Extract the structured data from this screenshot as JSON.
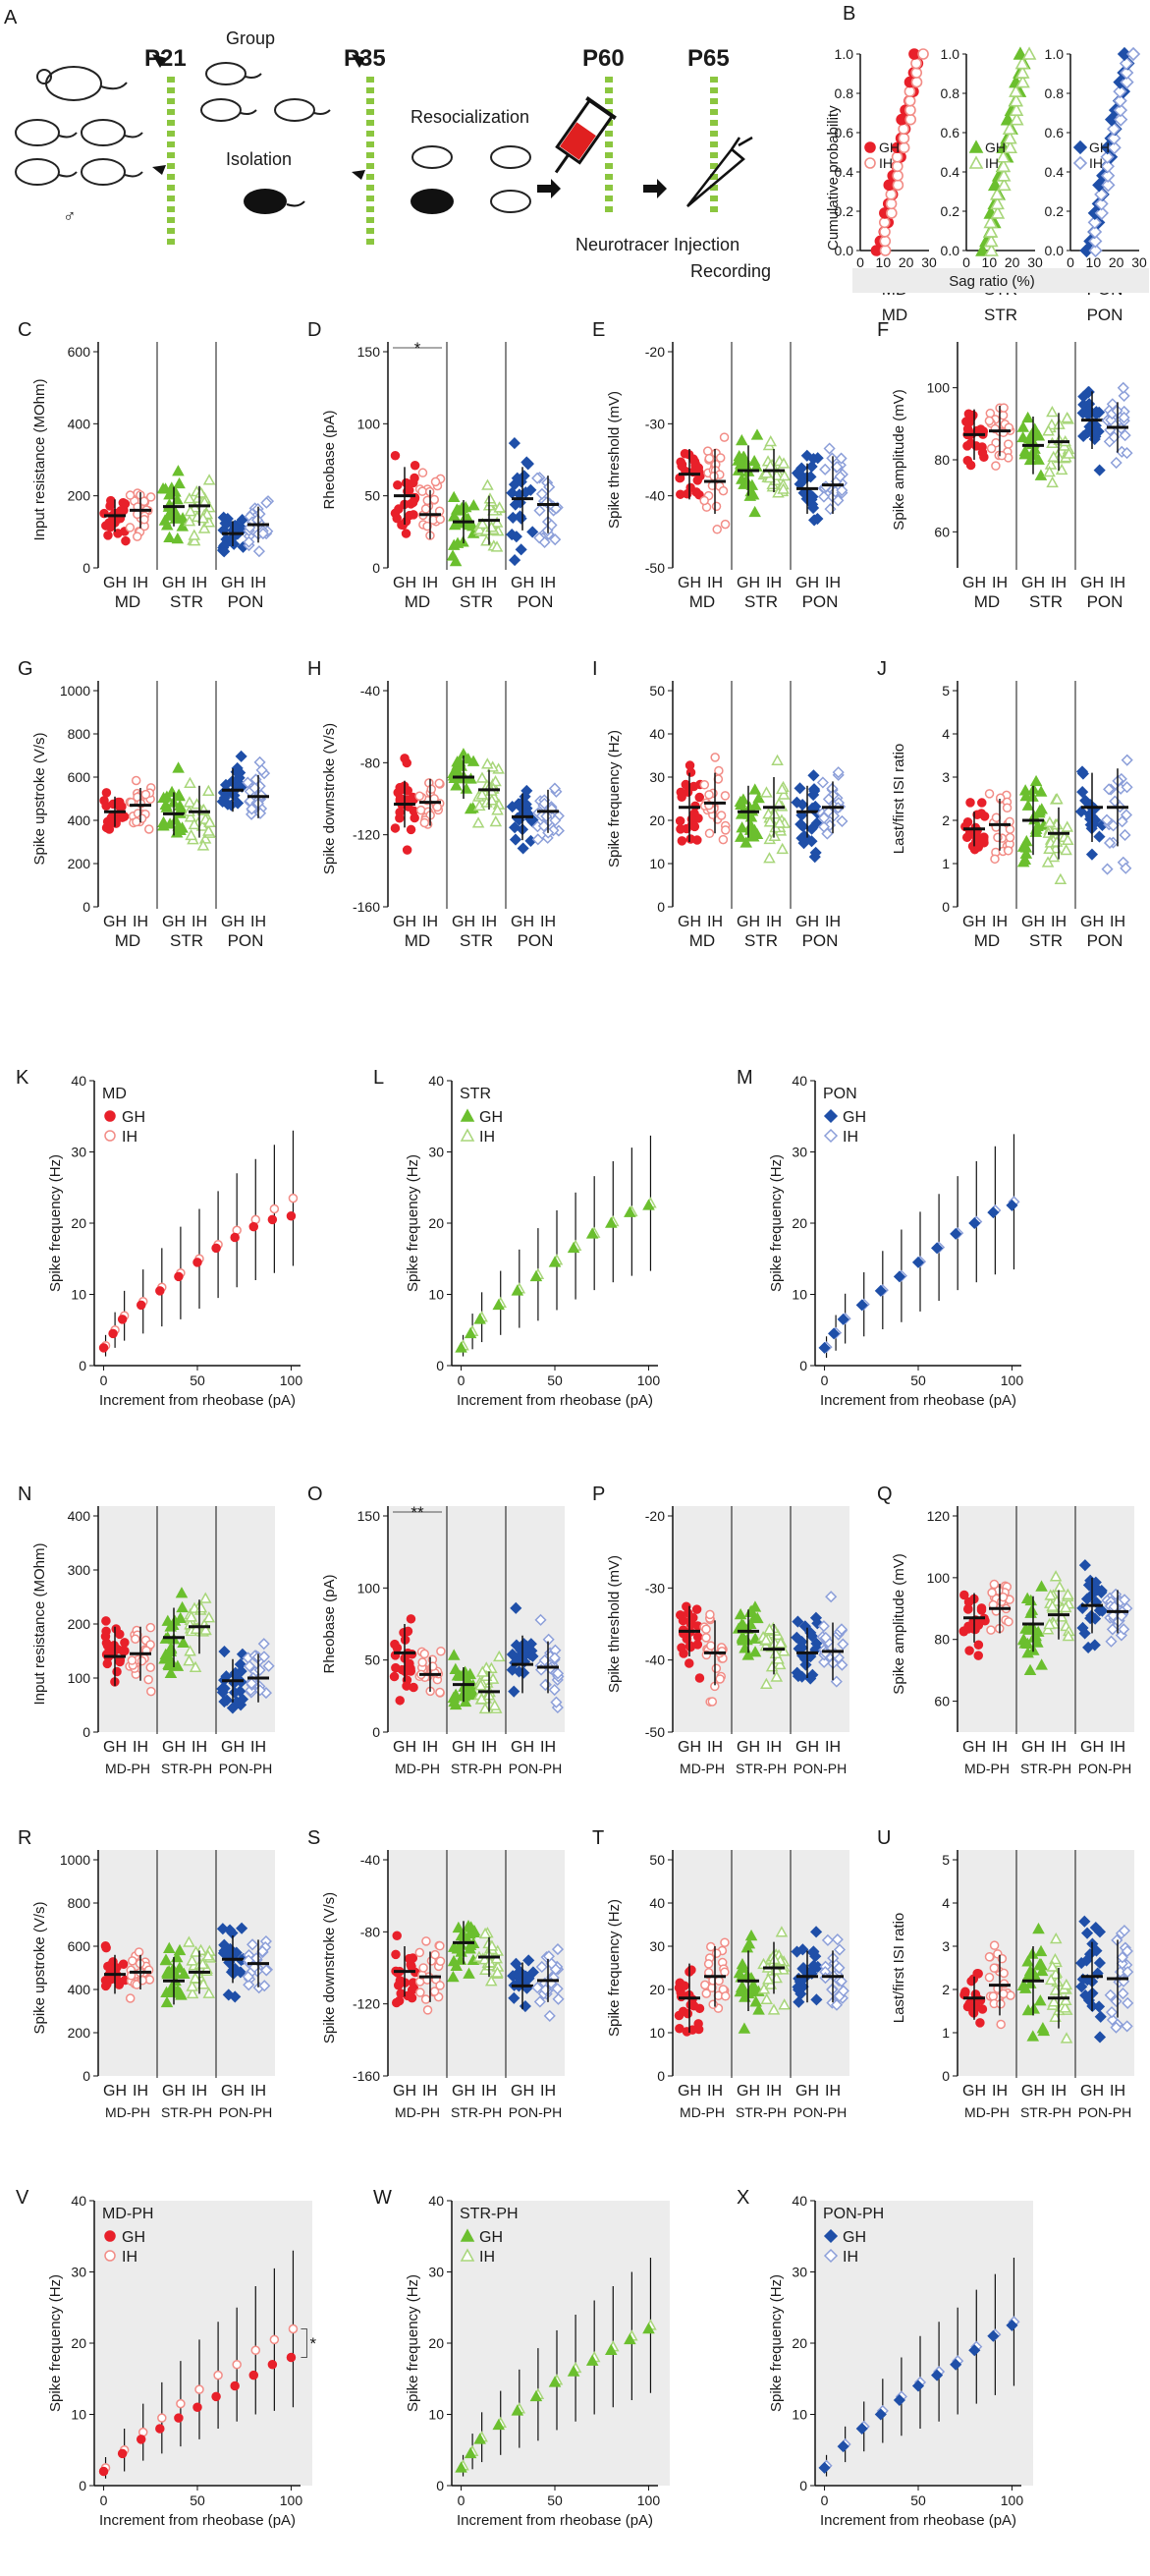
{
  "figure": {
    "panel_a": {
      "label": "A",
      "days": [
        "P21",
        "P35",
        "P60",
        "P65"
      ],
      "group_label": "Group",
      "isolation_label": "Isolation",
      "resocialization_label": "Resocialization",
      "injection_label": "Neurotracer Injection",
      "recording_label": "Recording",
      "sex_symbol": "♂"
    },
    "panel_b": {
      "label": "B",
      "ylabel": "Cumulative probability",
      "xlabel": "Sag ratio (%)",
      "yticks": [
        "0.0",
        "0.2",
        "0.4",
        "0.6",
        "0.8",
        "1.0"
      ],
      "xticks": [
        "0",
        "10",
        "20",
        "30"
      ],
      "regions": [
        "MD",
        "STR",
        "PON"
      ],
      "legend_gh": "GH",
      "legend_ih": "IH"
    },
    "colors": {
      "MD": "#e8202a",
      "STR": "#6bbf2e",
      "PON": "#1f4fa8",
      "MD_light": "#f28c86",
      "STR_light": "#a8d67a",
      "PON_light": "#8c9fd9",
      "shade": "#ececec"
    },
    "category_labels": [
      "GH",
      "IH",
      "GH",
      "IH",
      "GH",
      "IH"
    ],
    "region_labels": [
      "MD",
      "STR",
      "PON"
    ],
    "region_labels_ph": [
      "MD-PH",
      "STR-PH",
      "PON-PH"
    ],
    "significance": {
      "D": "*",
      "O": "**",
      "V": "*"
    }
  },
  "chart_data": [
    {
      "id": "C",
      "type": "scatter",
      "ylabel": "Input resistance (MOhm)",
      "ylim": [
        0,
        600
      ],
      "yticks": [
        0,
        200,
        400,
        600
      ],
      "means": [
        145,
        160,
        170,
        172,
        95,
        120
      ],
      "sds": [
        45,
        50,
        55,
        55,
        35,
        50
      ]
    },
    {
      "id": "D",
      "type": "scatter",
      "ylabel": "Rheobase (pA)",
      "ylim": [
        0,
        150
      ],
      "yticks": [
        0,
        50,
        100,
        150
      ],
      "means": [
        50,
        37,
        32,
        33,
        48,
        44
      ],
      "sds": [
        20,
        17,
        15,
        17,
        22,
        20
      ]
    },
    {
      "id": "E",
      "type": "scatter",
      "ylabel": "Spike threshold (mV)",
      "ylim": [
        -50,
        -20
      ],
      "yticks": [
        -50,
        -40,
        -30,
        -20
      ],
      "means": [
        -37,
        -38,
        -36.5,
        -36.5,
        -39,
        -38.5
      ],
      "sds": [
        3.5,
        4.5,
        3.5,
        3,
        3.5,
        4
      ]
    },
    {
      "id": "F",
      "type": "scatter",
      "ylabel": "Spike amplitude (mV)",
      "ylim": [
        50,
        110
      ],
      "yticks": [
        60,
        80,
        100
      ],
      "means": [
        87,
        88,
        84,
        85,
        91,
        89
      ],
      "sds": [
        7,
        7,
        8,
        8,
        8,
        7
      ]
    },
    {
      "id": "G",
      "type": "scatter",
      "ylabel": "Spike upstroke (V/s)",
      "ylim": [
        0,
        1000
      ],
      "yticks": [
        0,
        200,
        400,
        600,
        800,
        1000
      ],
      "means": [
        440,
        470,
        430,
        440,
        540,
        510
      ],
      "sds": [
        70,
        80,
        100,
        120,
        100,
        100
      ]
    },
    {
      "id": "H",
      "type": "scatter",
      "ylabel": "Spike downstroke (V/s)",
      "ylim": [
        -160,
        -40
      ],
      "yticks": [
        -160,
        -120,
        -80,
        -40
      ],
      "means": [
        -103,
        -102,
        -88,
        -95,
        -110,
        -107
      ],
      "sds": [
        13,
        13,
        12,
        11,
        13,
        12
      ]
    },
    {
      "id": "I",
      "type": "scatter",
      "ylabel": "Spike frequency (Hz)",
      "ylim": [
        0,
        50
      ],
      "yticks": [
        0,
        10,
        20,
        30,
        40,
        50
      ],
      "means": [
        23,
        24,
        22,
        23,
        22,
        23
      ],
      "sds": [
        8,
        7,
        6,
        7,
        6,
        6
      ]
    },
    {
      "id": "J",
      "type": "scatter",
      "ylabel": "Last/first ISI ratio",
      "ylim": [
        0,
        5
      ],
      "yticks": [
        0,
        1,
        2,
        3,
        4,
        5
      ],
      "means": [
        1.8,
        1.9,
        2.0,
        1.7,
        2.3,
        2.3
      ],
      "sds": [
        0.4,
        0.6,
        0.8,
        0.6,
        0.8,
        0.9
      ]
    },
    {
      "id": "K",
      "type": "line",
      "region": "MD",
      "title": "MD",
      "xlabel": "Increment from rheobase (pA)",
      "ylabel": "Spike frequency (Hz)",
      "xlim": [
        -5,
        105
      ],
      "ylim": [
        0,
        40
      ],
      "xticks": [
        0,
        50,
        100
      ],
      "yticks": [
        0,
        10,
        20,
        30,
        40
      ],
      "x": [
        0,
        5,
        10,
        20,
        30,
        40,
        50,
        60,
        70,
        80,
        90,
        100
      ],
      "gh": [
        2.5,
        4.5,
        6.5,
        8.5,
        10.5,
        12.5,
        14.5,
        16.5,
        18,
        19.5,
        20.5,
        21
      ],
      "ih": [
        2.8,
        5,
        7,
        9,
        11,
        13,
        15,
        17,
        19,
        20.5,
        22,
        23.5
      ],
      "err": [
        1.5,
        2.5,
        3.5,
        4.5,
        5.5,
        6.5,
        7,
        7.5,
        8,
        8.5,
        9,
        9.5
      ]
    },
    {
      "id": "L",
      "type": "line",
      "region": "STR",
      "title": "STR",
      "xlabel": "Increment from rheobase (pA)",
      "ylabel": "Spike frequency (Hz)",
      "xlim": [
        -5,
        105
      ],
      "ylim": [
        0,
        40
      ],
      "xticks": [
        0,
        50,
        100
      ],
      "yticks": [
        0,
        10,
        20,
        30,
        40
      ],
      "x": [
        0,
        5,
        10,
        20,
        30,
        40,
        50,
        60,
        70,
        80,
        90,
        100
      ],
      "gh": [
        2.5,
        4.5,
        6.5,
        8.5,
        10.5,
        12.5,
        14.5,
        16.5,
        18.5,
        20,
        21.5,
        22.5
      ],
      "ih": [
        2.8,
        4.8,
        6.8,
        8.8,
        10.8,
        12.8,
        14.8,
        16.8,
        18.6,
        20.2,
        21.6,
        22.8
      ],
      "err": [
        1.5,
        2.5,
        3.5,
        4.5,
        5.5,
        6.5,
        7,
        7.5,
        8,
        8.5,
        9,
        9.5
      ]
    },
    {
      "id": "M",
      "type": "line",
      "region": "PON",
      "title": "PON",
      "xlabel": "Increment from rheobase (pA)",
      "ylabel": "Spike frequency (Hz)",
      "xlim": [
        -5,
        105
      ],
      "ylim": [
        0,
        40
      ],
      "xticks": [
        0,
        50,
        100
      ],
      "yticks": [
        0,
        10,
        20,
        30,
        40
      ],
      "x": [
        0,
        5,
        10,
        20,
        30,
        40,
        50,
        60,
        70,
        80,
        90,
        100
      ],
      "gh": [
        2.5,
        4.5,
        6.5,
        8.5,
        10.5,
        12.5,
        14.5,
        16.5,
        18.5,
        20,
        21.5,
        22.5
      ],
      "ih": [
        2.6,
        4.6,
        6.6,
        8.6,
        10.6,
        12.6,
        14.6,
        16.6,
        18.6,
        20.2,
        21.8,
        23
      ],
      "err": [
        1.5,
        2.5,
        3.5,
        4.5,
        5.5,
        6.5,
        7,
        7.5,
        8,
        8.5,
        9,
        9.5
      ]
    },
    {
      "id": "N",
      "type": "scatter",
      "ylabel": "Input resistance (MOhm)",
      "ylim": [
        0,
        400
      ],
      "yticks": [
        0,
        100,
        200,
        300,
        400
      ],
      "means": [
        140,
        145,
        175,
        195,
        95,
        100
      ],
      "sds": [
        55,
        50,
        55,
        50,
        40,
        45
      ]
    },
    {
      "id": "O",
      "type": "scatter",
      "ylabel": "Rheobase (pA)",
      "ylim": [
        0,
        150
      ],
      "yticks": [
        0,
        50,
        100,
        150
      ],
      "means": [
        55,
        40,
        33,
        28,
        47,
        45
      ],
      "sds": [
        20,
        12,
        12,
        14,
        20,
        18
      ]
    },
    {
      "id": "P",
      "type": "scatter",
      "ylabel": "Spike threshold (mV)",
      "ylim": [
        -50,
        -20
      ],
      "yticks": [
        -50,
        -40,
        -30,
        -20
      ],
      "means": [
        -36,
        -39,
        -36,
        -38.5,
        -39,
        -38.8
      ],
      "sds": [
        3.5,
        4.5,
        3,
        3.5,
        3.5,
        4
      ]
    },
    {
      "id": "Q",
      "type": "scatter",
      "ylabel": "Spike amplitude (mV)",
      "ylim": [
        50,
        120
      ],
      "yticks": [
        60,
        80,
        100,
        120
      ],
      "means": [
        87,
        90,
        85,
        88,
        91,
        89
      ],
      "sds": [
        8,
        8,
        9,
        8,
        9,
        7
      ]
    },
    {
      "id": "R",
      "type": "scatter",
      "ylabel": "Spike upstroke (V/s)",
      "ylim": [
        0,
        1000
      ],
      "yticks": [
        0,
        200,
        400,
        600,
        800,
        1000
      ],
      "means": [
        470,
        480,
        440,
        480,
        540,
        520
      ],
      "sds": [
        90,
        80,
        110,
        100,
        110,
        110
      ]
    },
    {
      "id": "S",
      "type": "scatter",
      "ylabel": "Spike downstroke (V/s)",
      "ylim": [
        -160,
        -40
      ],
      "yticks": [
        -160,
        -120,
        -80,
        -40
      ],
      "means": [
        -102,
        -105,
        -86,
        -94,
        -110,
        -107
      ],
      "sds": [
        14,
        14,
        12,
        11,
        13,
        12
      ]
    },
    {
      "id": "T",
      "type": "scatter",
      "ylabel": "Spike frequency (Hz)",
      "ylim": [
        0,
        50
      ],
      "yticks": [
        0,
        10,
        20,
        30,
        40,
        50
      ],
      "means": [
        18,
        23,
        22,
        25,
        23,
        23
      ],
      "sds": [
        8,
        7,
        7,
        6,
        6,
        6
      ]
    },
    {
      "id": "U",
      "type": "scatter",
      "ylabel": "Last/first ISI ratio",
      "ylim": [
        0,
        5
      ],
      "yticks": [
        0,
        1,
        2,
        3,
        4,
        5
      ],
      "means": [
        1.8,
        2.1,
        2.2,
        1.8,
        2.3,
        2.25
      ],
      "sds": [
        0.5,
        0.7,
        0.8,
        0.7,
        0.8,
        0.9
      ]
    },
    {
      "id": "V",
      "type": "line",
      "region": "MD",
      "title": "MD-PH",
      "xlabel": "Increment from rheobase (pA)",
      "ylabel": "Spike frequency (Hz)",
      "xlim": [
        -5,
        105
      ],
      "ylim": [
        0,
        40
      ],
      "xticks": [
        0,
        50,
        100
      ],
      "yticks": [
        0,
        10,
        20,
        30,
        40
      ],
      "x": [
        0,
        10,
        20,
        30,
        40,
        50,
        60,
        70,
        80,
        90,
        100
      ],
      "gh": [
        2,
        4.5,
        6.5,
        8,
        9.5,
        11,
        12.5,
        14,
        15.5,
        17,
        18
      ],
      "ih": [
        2.5,
        5,
        7.5,
        9.5,
        11.5,
        13.5,
        15.5,
        17,
        19,
        20.5,
        22
      ],
      "err": [
        1.5,
        3,
        4,
        5,
        6,
        7,
        7.5,
        8,
        9,
        10,
        11
      ]
    },
    {
      "id": "W",
      "type": "line",
      "region": "STR",
      "title": "STR-PH",
      "xlabel": "Increment from rheobase (pA)",
      "ylabel": "Spike frequency (Hz)",
      "xlim": [
        -5,
        105
      ],
      "ylim": [
        0,
        40
      ],
      "xticks": [
        0,
        50,
        100
      ],
      "yticks": [
        0,
        10,
        20,
        30,
        40
      ],
      "x": [
        0,
        5,
        10,
        20,
        30,
        40,
        50,
        60,
        70,
        80,
        90,
        100
      ],
      "gh": [
        2.5,
        4.5,
        6.5,
        8.5,
        10.5,
        12.5,
        14.5,
        16,
        17.5,
        19,
        20.5,
        22
      ],
      "ih": [
        2.8,
        4.8,
        6.8,
        8.8,
        10.8,
        12.8,
        14.8,
        16.5,
        18,
        19.5,
        21,
        22.5
      ],
      "err": [
        1.5,
        2.5,
        3.5,
        4.5,
        5.5,
        6.5,
        7,
        7.5,
        8,
        8.5,
        9,
        9.5
      ]
    },
    {
      "id": "X",
      "type": "line",
      "region": "PON",
      "title": "PON-PH",
      "xlabel": "Increment from rheobase (pA)",
      "ylabel": "Spike frequency (Hz)",
      "xlim": [
        -5,
        105
      ],
      "ylim": [
        0,
        40
      ],
      "xticks": [
        0,
        50,
        100
      ],
      "yticks": [
        0,
        10,
        20,
        30,
        40
      ],
      "x": [
        0,
        10,
        20,
        30,
        40,
        50,
        60,
        70,
        80,
        90,
        100
      ],
      "gh": [
        2.5,
        5.5,
        8,
        10,
        12,
        14,
        15.5,
        17,
        19,
        21,
        22.5
      ],
      "ih": [
        2.8,
        5.8,
        8.3,
        10.5,
        12.5,
        14.5,
        16,
        17.5,
        19.5,
        21.2,
        23
      ],
      "err": [
        1.5,
        2.5,
        3.5,
        4.5,
        5.5,
        6.5,
        7,
        7.5,
        8,
        8.5,
        9
      ]
    }
  ]
}
